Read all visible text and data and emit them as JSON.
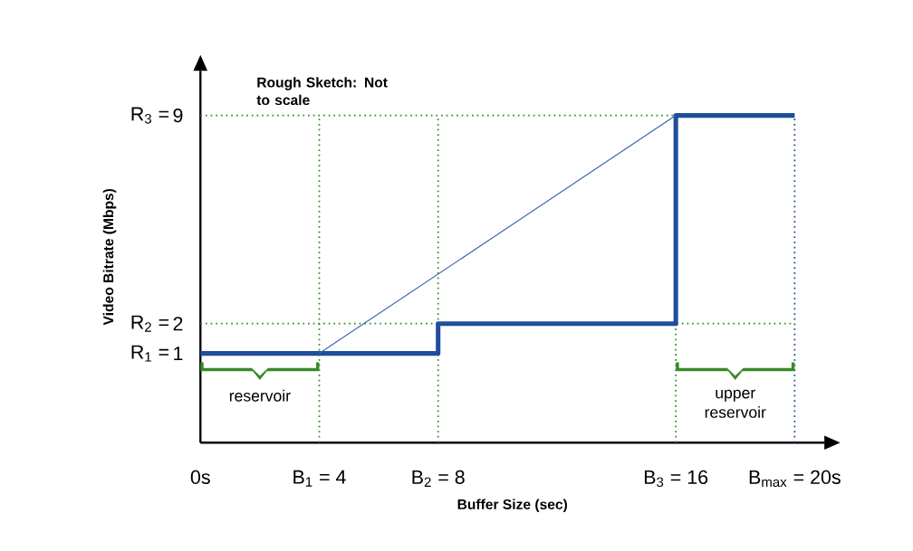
{
  "chart_data": {
    "type": "step",
    "xlabel": "Buffer Size (sec)",
    "ylabel": "Video Bitrate (Mbps)",
    "annotations": [
      "Rough Sketch: Not to scale",
      "R$_{1}$ =",
      "R$_{2}$ =",
      "R$_{3}$ =",
      "reservoir",
      "upper reservoir"
    ],
    "xlim": [
      0,
      21
    ],
    "ylim": [
      -2,
      10.5
    ],
    "xticks": [
      {
        "value": 0,
        "label": "0s"
      },
      {
        "value": 4,
        "label": "B$_{1}$ = 4"
      },
      {
        "value": 8,
        "label": "B$_{2}$ = 8"
      },
      {
        "value": 16,
        "label": "B$_{3}$ = 16"
      },
      {
        "value": 20,
        "label": "B$_{max}$ = 20s"
      }
    ],
    "yticks": [
      1,
      2,
      9
    ],
    "series": [
      {
        "color": "#1f4e9c",
        "x": [
          0,
          8,
          16,
          20
        ],
        "values": [
          1,
          2,
          9,
          9
        ]
      },
      {
        "type": "line",
        "color": "#3b63b0",
        "x": [
          4,
          16
        ],
        "values": [
          1,
          9
        ]
      }
    ],
    "ref_lines": [
      {
        "axis": "y",
        "value": 2,
        "color": "#3a8a2a",
        "line_style": "dotted"
      },
      {
        "axis": "y",
        "value": 9,
        "color": "#3a8a2a",
        "line_style": "dotted"
      },
      {
        "axis": "x",
        "value": 4,
        "color": "#3a8a2a",
        "line_style": "dotted"
      },
      {
        "axis": "x",
        "value": 8,
        "color": "#3a8a2a",
        "line_style": "dotted"
      },
      {
        "axis": "x",
        "value": 16,
        "color": "#3a8a2a",
        "line_style": "dotted"
      },
      {
        "axis": "x",
        "value": 20,
        "color": "#1f4e9c",
        "line_style": "dotted"
      }
    ],
    "grid": false
  }
}
